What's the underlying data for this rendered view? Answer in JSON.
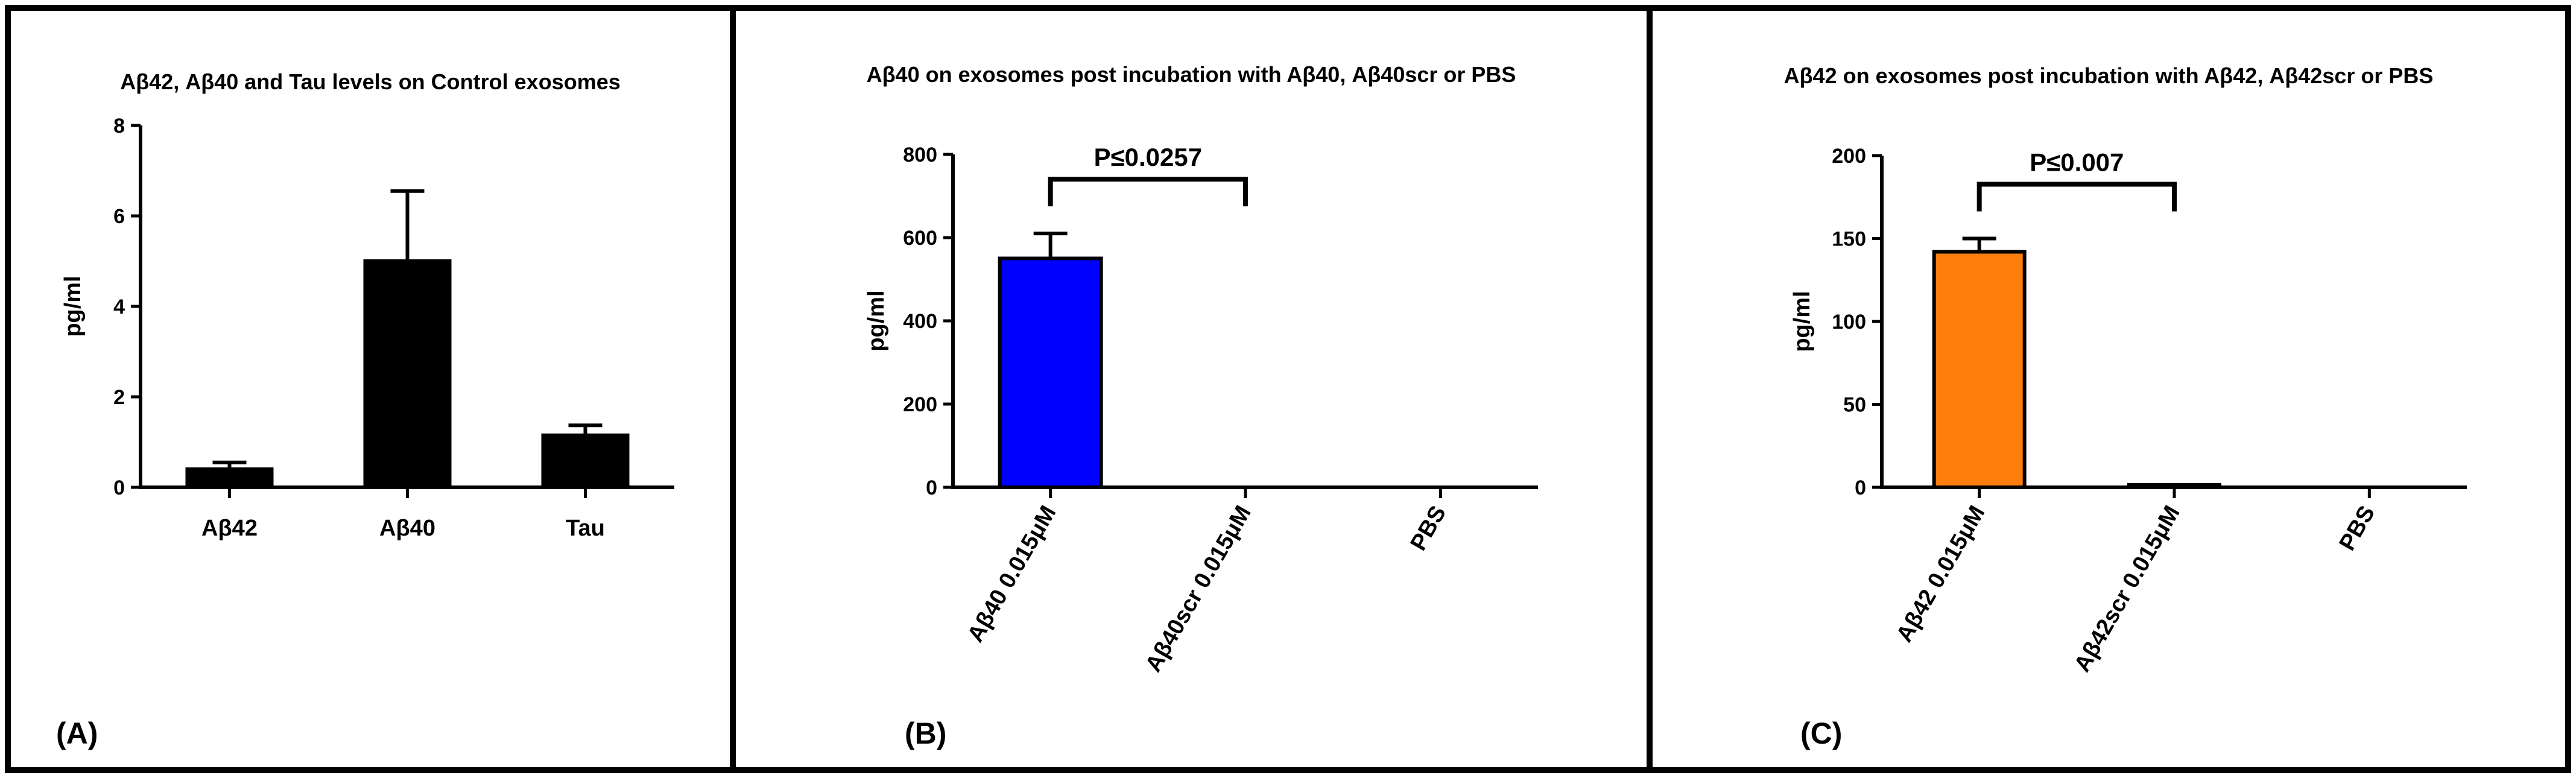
{
  "chart_data": [
    {
      "type": "bar",
      "panel_label": "(A)",
      "title": "Aβ42, Aβ40 and Tau levels on Control exosomes",
      "xlabel": "",
      "ylabel": "pg/ml",
      "ylim": [
        0,
        8
      ],
      "yticks": [
        "0",
        "2",
        "4",
        "6",
        "8"
      ],
      "categories": [
        "Aβ42",
        "Aβ40",
        "Tau"
      ],
      "values": [
        0.4,
        5.0,
        1.15
      ],
      "errors": [
        0.15,
        1.55,
        0.22
      ],
      "colors": [
        "#000000",
        "#000000",
        "#000000"
      ],
      "label_rotation": 0
    },
    {
      "type": "bar",
      "panel_label": "(B)",
      "title": "Aβ40 on exosomes post incubation with Aβ40, Aβ40scr or PBS",
      "xlabel": "",
      "ylabel": "pg/ml",
      "ylim": [
        0,
        800
      ],
      "yticks": [
        "0",
        "200",
        "400",
        "600",
        "800"
      ],
      "categories": [
        "Aβ40 0.015μM",
        "Aβ40scr 0.015μM",
        "PBS"
      ],
      "values": [
        550,
        0,
        0
      ],
      "errors": [
        60,
        0,
        0
      ],
      "colors": [
        "#0000ff",
        "#0000ff",
        "#0000ff"
      ],
      "label_rotation": -60,
      "significance": {
        "label": "P≤0.0257",
        "from": 0,
        "to": 1
      }
    },
    {
      "type": "bar",
      "panel_label": "(C)",
      "title": "Aβ42 on exosomes post incubation with Aβ42, Aβ42scr or PBS",
      "xlabel": "",
      "ylabel": "pg/ml",
      "ylim": [
        0,
        200
      ],
      "yticks": [
        "0",
        "50",
        "100",
        "150",
        "200"
      ],
      "categories": [
        "Aβ42 0.015μM",
        "Aβ42scr 0.015μM",
        "PBS"
      ],
      "values": [
        142,
        1.5,
        0
      ],
      "errors": [
        8,
        0,
        0
      ],
      "colors": [
        "#ff7f0e",
        "#ff7f0e",
        "#ff7f0e"
      ],
      "label_rotation": -60,
      "significance": {
        "label": "P≤0.007",
        "from": 0,
        "to": 1
      }
    }
  ]
}
